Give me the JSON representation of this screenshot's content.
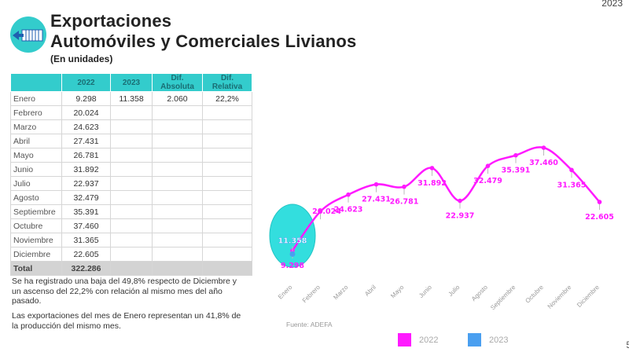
{
  "header": {
    "corner_year": "2023",
    "title_line1": "Exportaciones",
    "title_line2": "Automóviles y Comerciales Livianos",
    "subtitle": "(En unidades)",
    "icon": "export-warehouse-icon"
  },
  "table": {
    "headers": [
      "",
      "2022",
      "2023",
      "Dif. Absoluta",
      "Dif. Relativa"
    ],
    "rows": [
      [
        "Enero",
        "9.298",
        "11.358",
        "2.060",
        "22,2%"
      ],
      [
        "Febrero",
        "20.024",
        "",
        "",
        ""
      ],
      [
        "Marzo",
        "24.623",
        "",
        "",
        ""
      ],
      [
        "Abril",
        "27.431",
        "",
        "",
        ""
      ],
      [
        "Mayo",
        "26.781",
        "",
        "",
        ""
      ],
      [
        "Junio",
        "31.892",
        "",
        "",
        ""
      ],
      [
        "Julio",
        "22.937",
        "",
        "",
        ""
      ],
      [
        "Agosto",
        "32.479",
        "",
        "",
        ""
      ],
      [
        "Septiembre",
        "35.391",
        "",
        "",
        ""
      ],
      [
        "Octubre",
        "37.460",
        "",
        "",
        ""
      ],
      [
        "Noviembre",
        "31.365",
        "",
        "",
        ""
      ],
      [
        "Diciembre",
        "22.605",
        "",
        "",
        ""
      ]
    ],
    "total": [
      "Total",
      "322.286",
      "",
      "",
      ""
    ]
  },
  "notes": {
    "note1": "Se ha registrado una baja del 49,8% respecto de Diciembre y un ascenso del 22,2% con relación al mismo mes del año pasado.",
    "note2": "Las exportaciones del mes de Enero representan un 41,8% de la producción del mismo mes."
  },
  "source": "Fuente: ADEFA",
  "page_number": "5",
  "colors": {
    "accent_teal": "#33cccc",
    "series_2022": "#ff1aff",
    "series_2023": "#4a9ff0",
    "highlight_ellipse": "#33dede"
  },
  "chart_data": {
    "type": "line",
    "title": "",
    "xlabel": "",
    "ylabel": "",
    "categories": [
      "Enero",
      "Febrero",
      "Marzo",
      "Abril",
      "Mayo",
      "Junio",
      "Julio",
      "Agosto",
      "Septiembre",
      "Octubre",
      "Noviembre",
      "Diciembre"
    ],
    "series": [
      {
        "name": "2022",
        "color": "#ff1aff",
        "values": [
          9298,
          20024,
          24623,
          27431,
          26781,
          31892,
          22937,
          32479,
          35391,
          37460,
          31365,
          22605
        ],
        "labels": [
          "9.298",
          "20.024",
          "24.623",
          "27.431",
          "26.781",
          "31.892",
          "22.937",
          "32.479",
          "35.391",
          "37.460",
          "31.365",
          "22.605"
        ]
      },
      {
        "name": "2023",
        "color": "#4a9ff0",
        "values": [
          11358
        ],
        "labels": [
          "11.358"
        ]
      }
    ],
    "legend": [
      "2022",
      "2023"
    ],
    "legend_position": "bottom",
    "grid": false,
    "annotation": "Enero highlighted with teal ellipse"
  }
}
